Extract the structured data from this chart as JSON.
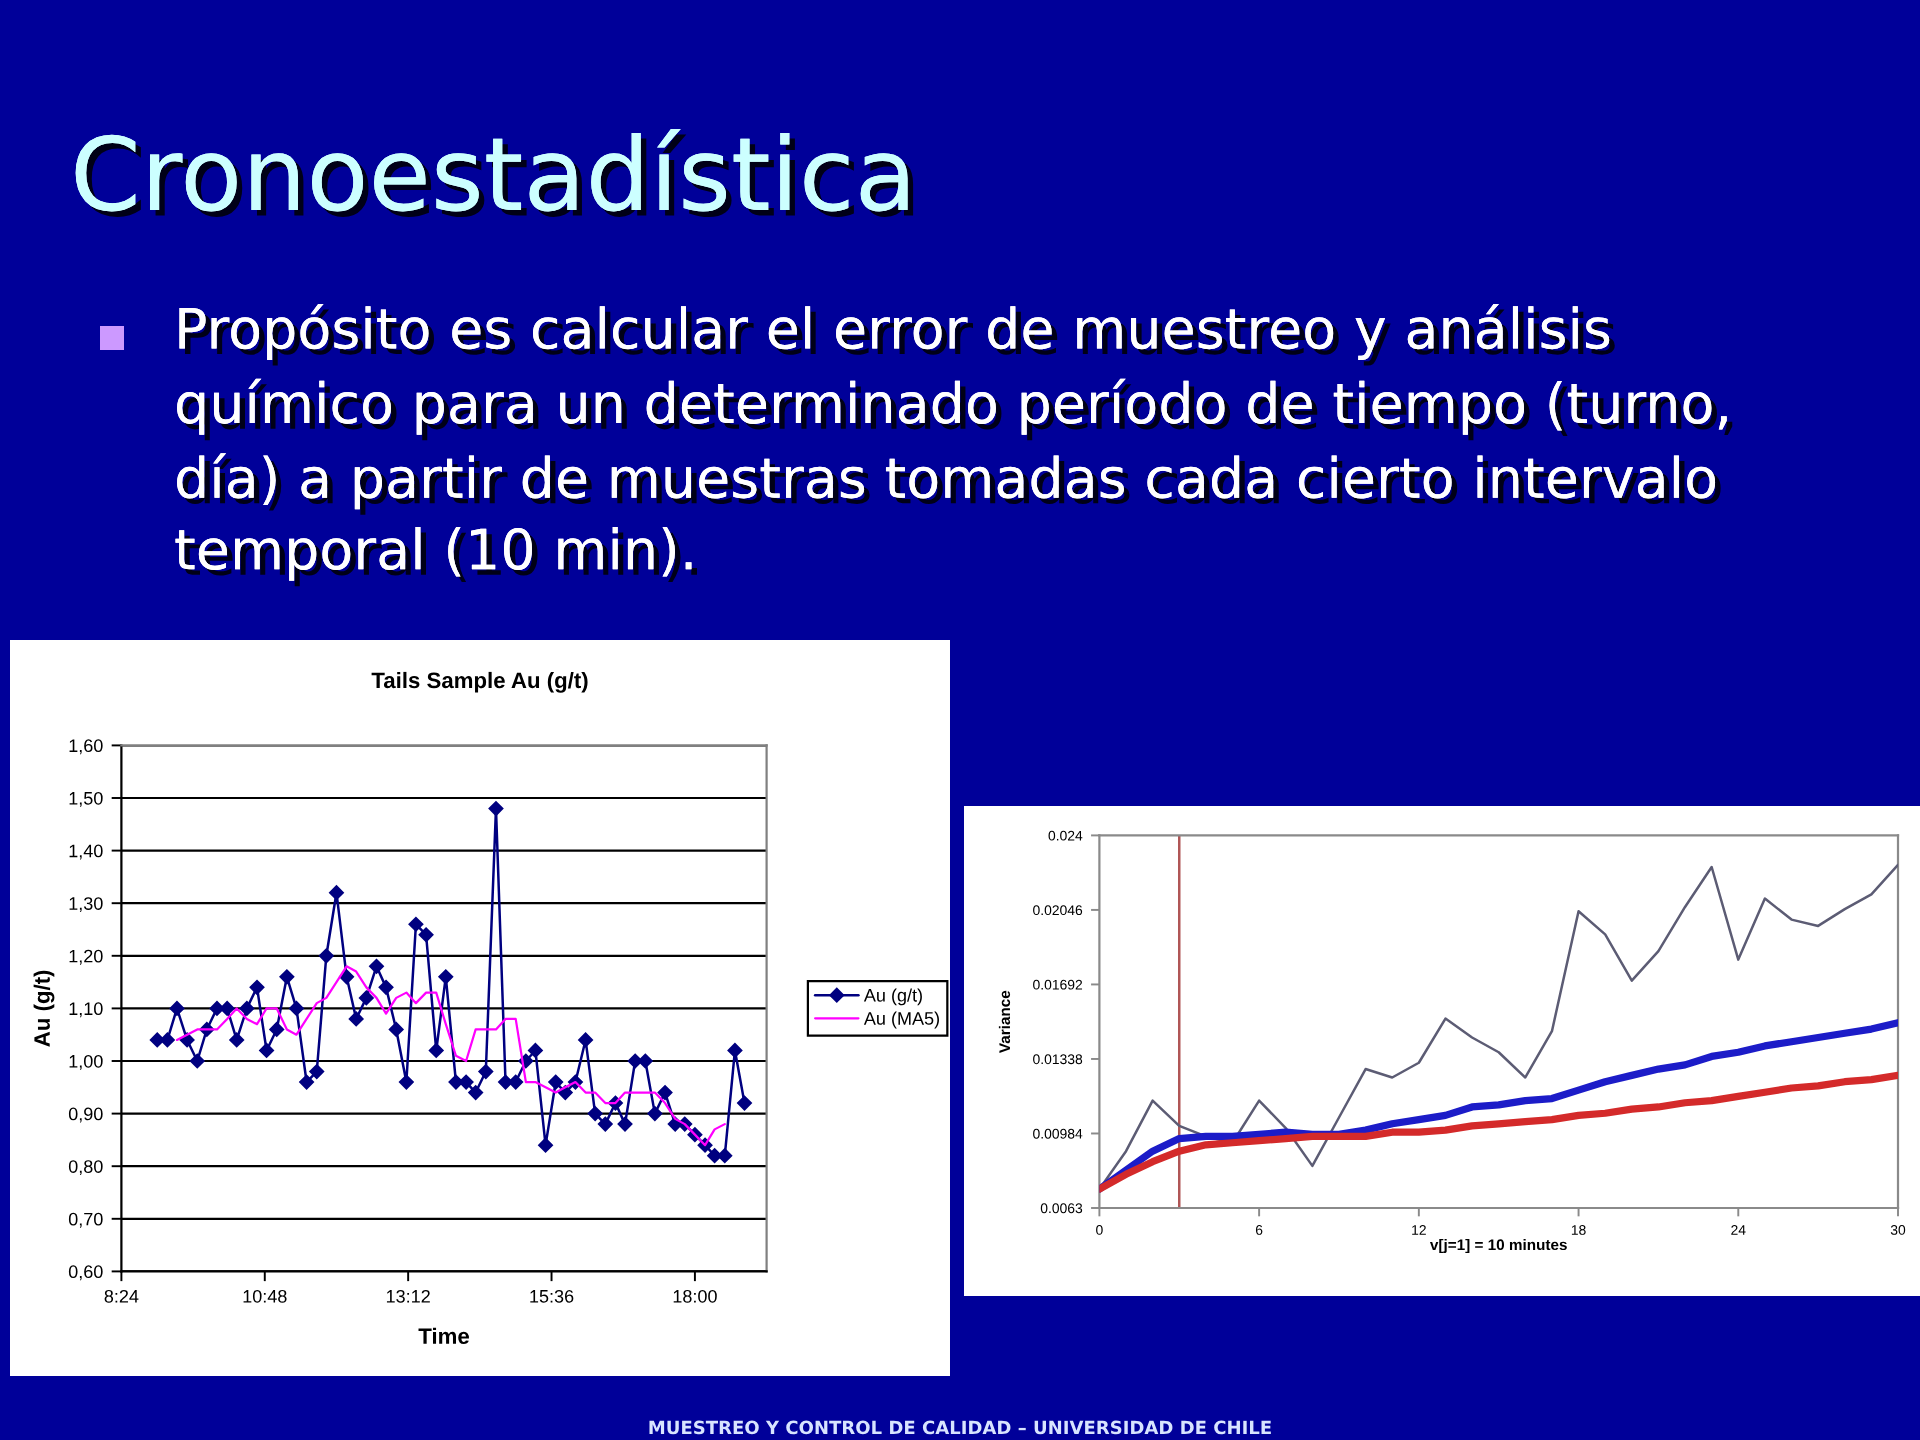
{
  "chart_data": [
    {
      "type": "other",
      "title": "Cronoestadística",
      "subtitle": "Propósito es calcular el error de muestreo y análisis\nquímico para un determinado período de tiempo (turno,\ndía) a partir de muestras tomadas cada cierto intervalo\ntemporal (10 min).",
      "annotations": [
        "MUESTREO Y CONTROL DE CALIDAD – UNIVERSIDAD DE CHILE"
      ]
    },
    {
      "type": "line",
      "title": "Tails Sample Au (g/t)",
      "xlabel": "Time",
      "ylabel": "Au (g/t)",
      "x": [
        9,
        9.17,
        9.33,
        9.5,
        9.67,
        9.83,
        10,
        10.17,
        10.33,
        10.5,
        10.67,
        10.83,
        11,
        11.17,
        11.33,
        11.5,
        11.67,
        11.83,
        12,
        12.17,
        12.33,
        12.5,
        12.67,
        12.83,
        13,
        13.17,
        13.33,
        13.5,
        13.67,
        13.83,
        14,
        14.17,
        14.33,
        14.5,
        14.67,
        14.83,
        15,
        15.17,
        15.33,
        15.5,
        15.67,
        15.83,
        16,
        16.17,
        16.33,
        16.5,
        16.67,
        16.83,
        17,
        17.17,
        17.33,
        17.5,
        17.67,
        17.83,
        18,
        18.17,
        18.33,
        18.5,
        18.67,
        18.83
      ],
      "xlim": [
        8.4,
        19.2
      ],
      "xticks": [
        {
          "value": 8.4,
          "label": "8:24"
        },
        {
          "value": 10.8,
          "label": "10:48"
        },
        {
          "value": 13.2,
          "label": "13:12"
        },
        {
          "value": 15.6,
          "label": "15:36"
        },
        {
          "value": 18.0,
          "label": "18:00"
        }
      ],
      "ylim": [
        0.6,
        1.6
      ],
      "yticks": [
        {
          "value": 0.6,
          "label": "0,60"
        },
        {
          "value": 0.7,
          "label": "0,70"
        },
        {
          "value": 0.8,
          "label": "0,80"
        },
        {
          "value": 0.9,
          "label": "0,90"
        },
        {
          "value": 1.0,
          "label": "1,00"
        },
        {
          "value": 1.1,
          "label": "1,10"
        },
        {
          "value": 1.2,
          "label": "1,20"
        },
        {
          "value": 1.3,
          "label": "1,30"
        },
        {
          "value": 1.4,
          "label": "1,40"
        },
        {
          "value": 1.5,
          "label": "1,50"
        },
        {
          "value": 1.6,
          "label": "1,60"
        }
      ],
      "grid": "y",
      "legend": "right",
      "series": [
        {
          "name": "Au (g/t)",
          "color": "#000080",
          "marker": "diamond",
          "values": [
            1.04,
            1.04,
            1.1,
            1.04,
            1.0,
            1.06,
            1.1,
            1.1,
            1.04,
            1.1,
            1.14,
            1.02,
            1.06,
            1.16,
            1.1,
            0.96,
            0.98,
            1.2,
            1.32,
            1.16,
            1.08,
            1.12,
            1.18,
            1.14,
            1.06,
            0.96,
            1.26,
            1.24,
            1.02,
            1.16,
            0.96,
            0.96,
            0.94,
            0.98,
            1.48,
            0.96,
            0.96,
            1.0,
            1.02,
            0.84,
            0.96,
            0.94,
            0.96,
            1.04,
            0.9,
            0.88,
            0.92,
            0.88,
            1.0,
            1.0,
            0.9,
            0.94,
            0.88,
            0.88,
            0.86,
            0.84,
            0.82,
            0.82,
            1.02,
            0.92
          ]
        },
        {
          "name": "Au (MA5)",
          "color": "#ff00ff",
          "marker": "none",
          "values": [
            null,
            null,
            1.04,
            1.05,
            1.06,
            1.06,
            1.06,
            1.08,
            1.1,
            1.08,
            1.07,
            1.1,
            1.1,
            1.06,
            1.05,
            1.08,
            1.11,
            1.12,
            1.15,
            1.18,
            1.17,
            1.14,
            1.12,
            1.09,
            1.12,
            1.13,
            1.11,
            1.13,
            1.13,
            1.07,
            1.01,
            1.0,
            1.06,
            1.06,
            1.06,
            1.08,
            1.08,
            0.96,
            0.96,
            0.95,
            0.94,
            0.95,
            0.96,
            0.94,
            0.94,
            0.92,
            0.92,
            0.94,
            0.94,
            0.94,
            0.94,
            0.92,
            0.89,
            0.88,
            0.86,
            0.84,
            0.87,
            0.88,
            null,
            null
          ]
        }
      ]
    },
    {
      "type": "line",
      "xlabel": "v[j=1] = 10 minutes",
      "ylabel": "Variance",
      "x": [
        0,
        1,
        2,
        3,
        4,
        5,
        6,
        7,
        8,
        9,
        10,
        11,
        12,
        13,
        14,
        15,
        16,
        17,
        18,
        19,
        20,
        21,
        22,
        23,
        24,
        25,
        26,
        27,
        28,
        29,
        30
      ],
      "xlim": [
        0,
        30
      ],
      "xticks": [
        0,
        6,
        12,
        18,
        24,
        30
      ],
      "ylim": [
        0.0063,
        0.024
      ],
      "yticks": [
        0.0063,
        0.00984,
        0.01338,
        0.01692,
        0.02046,
        0.024
      ],
      "ref_lines": [
        {
          "axis": "x",
          "value": 3,
          "color": "#b05555"
        }
      ],
      "series": [
        {
          "color": "#5c5c74",
          "values": [
            0.0072,
            0.009,
            0.0114,
            0.0102,
            0.0097,
            0.0094,
            0.0114,
            0.0101,
            0.0083,
            0.0106,
            0.0129,
            0.0125,
            0.0132,
            0.0153,
            0.0144,
            0.0137,
            0.0125,
            0.0147,
            0.0204,
            0.0193,
            0.0171,
            0.0185,
            0.0206,
            0.0225,
            0.0181,
            0.021,
            0.02,
            0.0197,
            0.0205,
            0.0212,
            0.0226
          ]
        },
        {
          "color": "#1c1cc8",
          "values": [
            0.0072,
            0.0081,
            0.009,
            0.0096,
            0.0097,
            0.0097,
            0.0098,
            0.0099,
            0.0098,
            0.0098,
            0.01,
            0.0103,
            0.0105,
            0.0107,
            0.0111,
            0.0112,
            0.0114,
            0.0115,
            0.0119,
            0.0123,
            0.0126,
            0.0129,
            0.0131,
            0.0135,
            0.0137,
            0.014,
            0.0142,
            0.0144,
            0.0146,
            0.0148,
            0.0151
          ]
        },
        {
          "color": "#d42a2a",
          "values": [
            0.0072,
            0.0079,
            0.0085,
            0.009,
            0.0093,
            0.0094,
            0.0095,
            0.0096,
            0.0097,
            0.0097,
            0.0097,
            0.0099,
            0.0099,
            0.01,
            0.0102,
            0.0103,
            0.0104,
            0.0105,
            0.0107,
            0.0108,
            0.011,
            0.0111,
            0.0113,
            0.0114,
            0.0116,
            0.0118,
            0.012,
            0.0121,
            0.0123,
            0.0124,
            0.0126
          ]
        }
      ]
    }
  ]
}
